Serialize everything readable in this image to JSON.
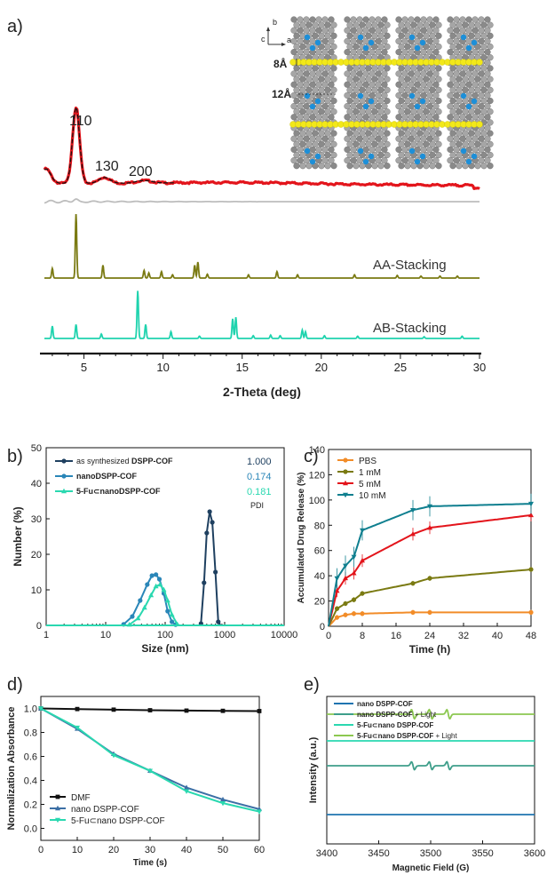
{
  "panel_labels": [
    "a)",
    "b)",
    "c)",
    "d)",
    "e)"
  ],
  "colors": {
    "exp": "#e3141b",
    "fit": "#111111",
    "diff": "#bdbdbd",
    "aa": "#7a7a12",
    "ab": "#1fd3ae",
    "b1": "#1f4060",
    "b2": "#2a86b8",
    "b3": "#2ad8b0",
    "c_pbs": "#f28c28",
    "c_1": "#7a7a12",
    "c_5": "#e3141b",
    "c_10": "#0f7f8f",
    "d_dmf": "#111111",
    "d_nano": "#3c6fa5",
    "d_fu": "#2ad8b0",
    "e1": "#1f74b0",
    "e2": "#3e9e8a",
    "e3": "#2ad8b0",
    "e4": "#8cc850"
  },
  "structure": {
    "axis_b": "b",
    "axis_c": "c",
    "axis_a": "a",
    "dim_1": "8Å",
    "dim_2": "12Å"
  },
  "chart_data": [
    {
      "panel": "a",
      "type": "line",
      "xlabel": "2-Theta (deg)",
      "xlim": [
        2.5,
        30
      ],
      "xticks": [
        5,
        10,
        15,
        20,
        25,
        30
      ],
      "peak_labels": [
        {
          "text": "110",
          "x": 4.5
        },
        {
          "text": "130",
          "x": 6.3
        },
        {
          "text": "200",
          "x": 8.8
        }
      ],
      "series": [
        {
          "label": "AA-Stacking",
          "peaks": [
            [
              3.0,
              0.15
            ],
            [
              4.5,
              1.0
            ],
            [
              6.2,
              0.2
            ],
            [
              8.8,
              0.12
            ],
            [
              9.1,
              0.08
            ],
            [
              9.9,
              0.1
            ],
            [
              10.6,
              0.05
            ],
            [
              12.0,
              0.2
            ],
            [
              12.2,
              0.25
            ],
            [
              12.8,
              0.06
            ],
            [
              15.4,
              0.05
            ],
            [
              17.2,
              0.1
            ],
            [
              18.5,
              0.05
            ],
            [
              22.1,
              0.05
            ],
            [
              24.8,
              0.04
            ],
            [
              26.3,
              0.03
            ],
            [
              27.5,
              0.03
            ],
            [
              28.6,
              0.03
            ]
          ]
        },
        {
          "label": "AB-Stacking",
          "peaks": [
            [
              3.0,
              0.22
            ],
            [
              4.5,
              0.25
            ],
            [
              6.1,
              0.08
            ],
            [
              8.4,
              0.85
            ],
            [
              8.9,
              0.25
            ],
            [
              10.5,
              0.12
            ],
            [
              12.3,
              0.04
            ],
            [
              14.4,
              0.35
            ],
            [
              14.6,
              0.38
            ],
            [
              15.7,
              0.05
            ],
            [
              16.8,
              0.06
            ],
            [
              17.4,
              0.05
            ],
            [
              18.8,
              0.15
            ],
            [
              19.0,
              0.12
            ],
            [
              20.2,
              0.05
            ],
            [
              22.3,
              0.04
            ],
            [
              26.5,
              0.03
            ],
            [
              28.9,
              0.04
            ]
          ]
        }
      ]
    },
    {
      "panel": "b",
      "type": "line",
      "xlabel": "Size (nm)",
      "ylabel": "Number (%)",
      "x_scale": "log",
      "xlim": [
        1,
        10000
      ],
      "ylim": [
        0,
        50
      ],
      "xticks": [
        1,
        10,
        100,
        1000,
        10000
      ],
      "yticks": [
        0,
        10,
        20,
        30,
        40,
        50
      ],
      "pdi_label": "PDI",
      "series": [
        {
          "name_prefix": "as synthesized",
          "name_bold": "DSPP-COF",
          "pdi": "1.000",
          "x": [
            400,
            450,
            500,
            560,
            620,
            700,
            780
          ],
          "y": [
            0.5,
            12,
            26,
            32,
            29,
            15,
            1
          ]
        },
        {
          "name_prefix": "",
          "name_bold": "nanoDSPP-COF",
          "pdi": "0.174",
          "x": [
            20,
            28,
            38,
            50,
            60,
            70,
            80,
            95,
            110,
            130,
            150
          ],
          "y": [
            0.3,
            2.5,
            7,
            11.5,
            14,
            14.3,
            13,
            9,
            4,
            1,
            0.2
          ]
        },
        {
          "name_prefix": "",
          "name_bold": "5-Fu⊂nanoDSPP-COF",
          "pdi": "0.181",
          "x": [
            25,
            35,
            45,
            58,
            70,
            82,
            95,
            110,
            130,
            160
          ],
          "y": [
            0.2,
            2,
            5,
            8.5,
            11,
            11.5,
            10,
            7,
            3,
            0.3
          ]
        }
      ]
    },
    {
      "panel": "c",
      "type": "line",
      "xlabel": "Time (h)",
      "ylabel": "Accumulated Drug Release (%)",
      "xlim": [
        0,
        48
      ],
      "ylim": [
        0,
        140
      ],
      "xticks": [
        0,
        8,
        16,
        24,
        32,
        40,
        48
      ],
      "yticks": [
        0,
        20,
        40,
        60,
        80,
        100,
        120,
        140
      ],
      "series": [
        {
          "name": "PBS",
          "x": [
            0,
            2,
            4,
            6,
            8,
            20,
            24,
            48
          ],
          "y": [
            0,
            7,
            9,
            10,
            10,
            11,
            11,
            11
          ]
        },
        {
          "name": "1 mM",
          "x": [
            0,
            2,
            4,
            6,
            8,
            20,
            24,
            48
          ],
          "y": [
            0,
            14,
            18,
            21,
            26,
            34,
            38,
            45
          ]
        },
        {
          "name": "5 mM",
          "x": [
            0,
            2,
            4,
            6,
            8,
            20,
            24,
            48
          ],
          "y": [
            0,
            28,
            38,
            42,
            52,
            73,
            78,
            88
          ]
        },
        {
          "name": "10 mM",
          "x": [
            0,
            2,
            4,
            6,
            8,
            20,
            24,
            48
          ],
          "y": [
            0,
            38,
            48,
            55,
            76,
            92,
            95,
            97
          ]
        }
      ]
    },
    {
      "panel": "d",
      "type": "line",
      "xlabel": "Time (s)",
      "ylabel": "Normalization Absorbance",
      "xlim": [
        0,
        60
      ],
      "ylim": [
        -0.1,
        1.1
      ],
      "xticks": [
        0,
        10,
        20,
        30,
        40,
        50,
        60
      ],
      "yticks": [
        0.0,
        0.2,
        0.4,
        0.6,
        0.8,
        1.0
      ],
      "series": [
        {
          "name": "DMF",
          "x": [
            0,
            10,
            20,
            30,
            40,
            50,
            60
          ],
          "y": [
            1.0,
            0.995,
            0.99,
            0.985,
            0.982,
            0.98,
            0.978
          ]
        },
        {
          "name": "nano DSPP-COF",
          "x": [
            0,
            10,
            20,
            30,
            40,
            50,
            60
          ],
          "y": [
            1.0,
            0.83,
            0.62,
            0.48,
            0.34,
            0.24,
            0.16
          ]
        },
        {
          "name": "5-Fu⊂nano DSPP-COF",
          "x": [
            0,
            10,
            20,
            30,
            40,
            50,
            60
          ],
          "y": [
            1.0,
            0.84,
            0.61,
            0.48,
            0.31,
            0.21,
            0.14
          ]
        }
      ]
    },
    {
      "panel": "e",
      "type": "line",
      "xlabel": "Magnetic Field (G)",
      "ylabel": "Intensity (a.u.)",
      "xlim": [
        3400,
        3600
      ],
      "xticks": [
        3400,
        3450,
        3500,
        3550,
        3600
      ],
      "series": [
        {
          "name": "nano DSPP-COF",
          "signal": false
        },
        {
          "name_prefix": "nano DSPP-COF",
          "name_suffix": " + Light",
          "signal": true
        },
        {
          "name": "5-Fu⊂nano DSPP-COF",
          "signal": false
        },
        {
          "name_prefix": "5-Fu⊂nano DSPP-COF",
          "name_suffix": " + Light",
          "signal": true
        }
      ]
    }
  ]
}
